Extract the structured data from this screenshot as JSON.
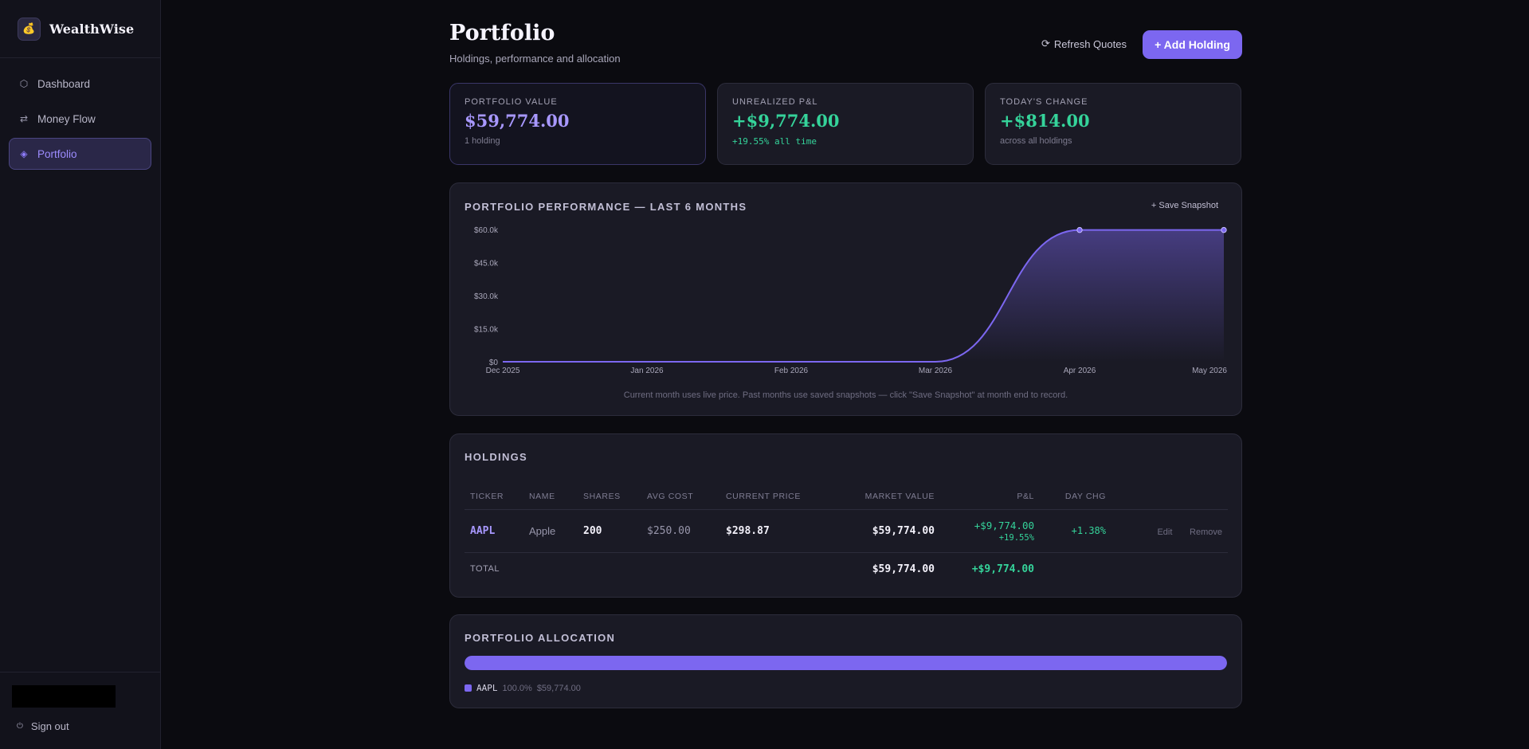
{
  "brand": {
    "name": "WealthWise",
    "logo_icon": "money-bag-icon"
  },
  "nav": {
    "items": [
      {
        "label": "Dashboard",
        "icon": "hexagon-icon"
      },
      {
        "label": "Money Flow",
        "icon": "swap-arrows-icon"
      },
      {
        "label": "Portfolio",
        "icon": "diamond-icon",
        "active": true
      }
    ],
    "signout": "Sign out"
  },
  "header": {
    "title": "Portfolio",
    "subtitle": "Holdings, performance and allocation",
    "refresh_label": "Refresh Quotes",
    "add_label": "+ Add Holding"
  },
  "cards": [
    {
      "label": "PORTFOLIO VALUE",
      "value": "$59,774.00",
      "note": "1 holding"
    },
    {
      "label": "UNREALIZED P&L",
      "value": "+$9,774.00",
      "note": "+19.55% all time"
    },
    {
      "label": "TODAY'S CHANGE",
      "value": "+$814.00",
      "note": "across all holdings"
    }
  ],
  "performance": {
    "title": "PORTFOLIO PERFORMANCE — LAST 6 MONTHS",
    "save_label": "+ Save Snapshot",
    "note": "Current month uses live price. Past months use saved snapshots — click \"Save Snapshot\" at month end to record."
  },
  "chart_data": {
    "type": "area",
    "x": [
      "Dec 2025",
      "Jan 2026",
      "Feb 2026",
      "Mar 2026",
      "Apr 2026",
      "May 2026"
    ],
    "values": [
      0,
      0,
      0,
      0,
      59774,
      59774
    ],
    "ylim": [
      0,
      60000
    ],
    "yticks": [
      0,
      15000,
      30000,
      45000,
      60000
    ],
    "ytick_labels": [
      "$0",
      "$15.0k",
      "$30.0k",
      "$45.0k",
      "$60.0k"
    ],
    "grid": false,
    "line_color": "#7c67f0"
  },
  "holdings": {
    "title": "HOLDINGS",
    "columns": [
      "TICKER",
      "NAME",
      "SHARES",
      "AVG COST",
      "CURRENT PRICE",
      "MARKET VALUE",
      "P&L",
      "DAY CHG"
    ],
    "rows": [
      {
        "ticker": "AAPL",
        "name": "Apple",
        "shares": "200",
        "avg_cost": "$250.00",
        "price": "$298.87",
        "market_value": "$59,774.00",
        "pl": "+$9,774.00",
        "pl_pct": "+19.55%",
        "day_chg": "+1.38%",
        "edit": "Edit",
        "remove": "Remove"
      }
    ],
    "total": {
      "label": "TOTAL",
      "market_value": "$59,774.00",
      "pl": "+$9,774.00"
    }
  },
  "allocation": {
    "title": "PORTFOLIO ALLOCATION",
    "items": [
      {
        "ticker": "AAPL",
        "pct": "100.0%",
        "value": "$59,774.00",
        "share": 1.0
      }
    ]
  },
  "colors": {
    "accent": "#7c67f0",
    "positive": "#35d39a",
    "background": "#0b0b10"
  }
}
